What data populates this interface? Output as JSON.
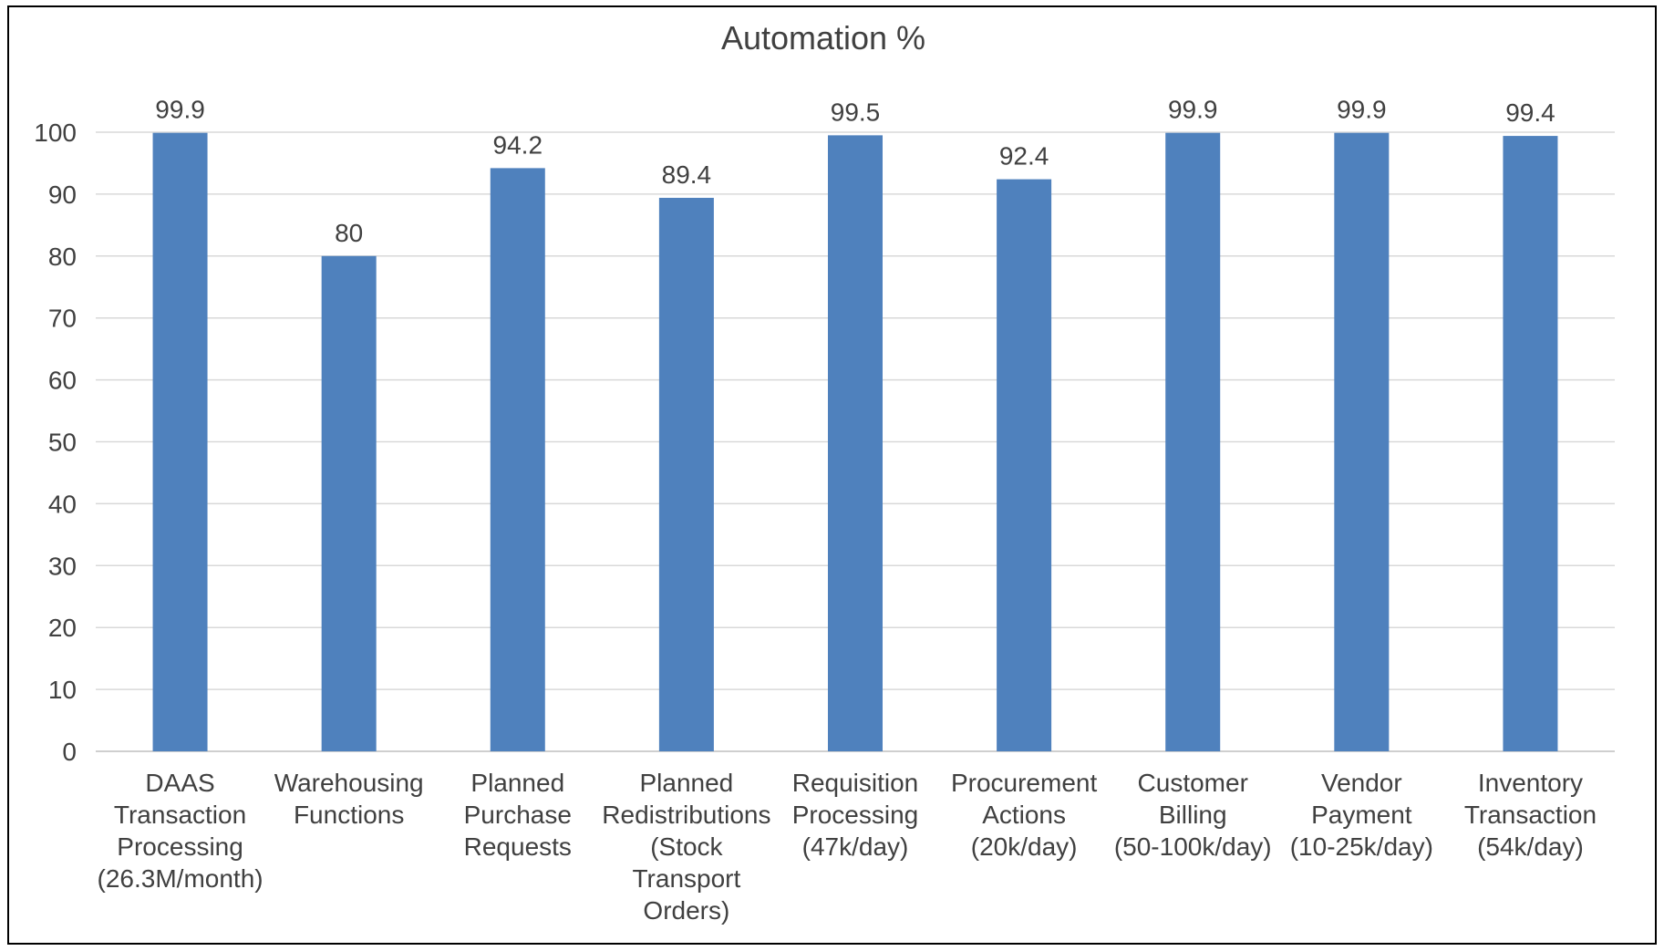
{
  "chart_data": {
    "type": "bar",
    "title": "Automation %",
    "xlabel": "",
    "ylabel": "",
    "ylim": [
      0,
      100
    ],
    "yticks": [
      0,
      10,
      20,
      30,
      40,
      50,
      60,
      70,
      80,
      90,
      100
    ],
    "grid": true,
    "legend": "none",
    "bar_color": "#4f81bd",
    "categories": [
      [
        "DAAS",
        "Transaction",
        "Processing",
        "(26.3M/month)"
      ],
      [
        "Warehousing",
        "Functions"
      ],
      [
        "Planned",
        "Purchase",
        "Requests"
      ],
      [
        "Planned",
        "Redistributions",
        "(Stock",
        "Transport",
        "Orders)"
      ],
      [
        "Requisition",
        "Processing",
        "(47k/day)"
      ],
      [
        "Procurement",
        "Actions",
        "(20k/day)"
      ],
      [
        "Customer",
        "Billing",
        "(50-100k/day)"
      ],
      [
        "Vendor",
        "Payment",
        "(10-25k/day)"
      ],
      [
        "Inventory",
        "Transaction",
        "(54k/day)"
      ]
    ],
    "values": [
      99.9,
      80,
      94.2,
      89.4,
      99.5,
      92.4,
      99.9,
      99.9,
      99.4
    ]
  }
}
